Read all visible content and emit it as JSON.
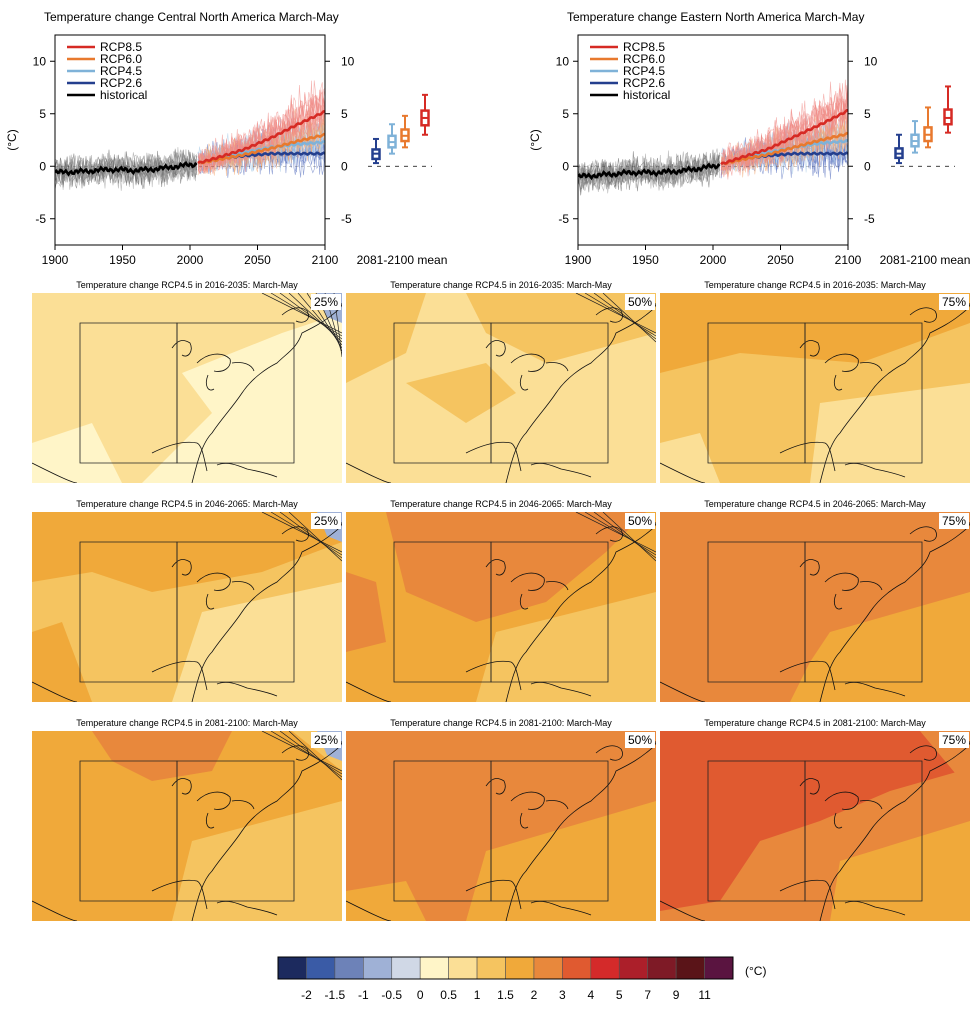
{
  "timeseries": [
    {
      "title": "Temperature change Central North America March-May"
    },
    {
      "title": "Temperature change Eastern North America March-May"
    }
  ],
  "ts_common": {
    "ylabel": "(°C)",
    "mean_label": "2081-2100 mean",
    "yticks": [
      "10",
      "5",
      "0",
      "-5"
    ],
    "xticks": [
      "1900",
      "1950",
      "2000",
      "2050",
      "2100"
    ]
  },
  "maps": {
    "percentile_labels": [
      "25%",
      "50%",
      "75%"
    ],
    "titles": [
      [
        "Temperature change RCP4.5 in 2016-2035: March-May",
        "Temperature change RCP4.5 in 2016-2035: March-May",
        "Temperature change RCP4.5 in 2016-2035: March-May"
      ],
      [
        "Temperature change RCP4.5 in 2046-2065: March-May",
        "Temperature change RCP4.5 in 2046-2065: March-May",
        "Temperature change RCP4.5 in 2046-2065: March-May"
      ],
      [
        "Temperature change RCP4.5 in 2081-2100: March-May",
        "Temperature change RCP4.5 in 2081-2100: March-May",
        "Temperature change RCP4.5 in 2081-2100: March-May"
      ]
    ]
  },
  "colorbar": {
    "unit": "(°C)",
    "labels": [
      "-2",
      "-1.5",
      "-1",
      "-0.5",
      "0",
      "0.5",
      "1",
      "1.5",
      "2",
      "3",
      "4",
      "5",
      "7",
      "9",
      "11"
    ],
    "colors": [
      "#1c2a5e",
      "#3a5ba6",
      "#6d82b8",
      "#9fb1d6",
      "#d0d8e6",
      "#fff5c8",
      "#fbdf96",
      "#f5c460",
      "#f0a93a",
      "#e8883c",
      "#e05a30",
      "#d42a2a",
      "#ac1f2a",
      "#7e1a26",
      "#5a1418",
      "#5a1440"
    ]
  },
  "chart_data": [
    {
      "type": "line",
      "title": "Temperature change Central North America March-May",
      "ylabel": "(°C)",
      "xlim": [
        1900,
        2100
      ],
      "ylim": [
        -7.5,
        12.5
      ],
      "series": [
        {
          "name": "historical",
          "color": "#000000",
          "x": [
            1900,
            1920,
            1940,
            1960,
            1980,
            1990,
            2005
          ],
          "y": [
            -0.6,
            -0.5,
            -0.3,
            -0.4,
            -0.2,
            0.0,
            0.2
          ]
        },
        {
          "name": "RCP8.5",
          "color": "#d62a24",
          "x": [
            2006,
            2020,
            2040,
            2060,
            2080,
            2100
          ],
          "y": [
            0.3,
            0.8,
            1.6,
            2.7,
            4.0,
            5.2
          ]
        },
        {
          "name": "RCP6.0",
          "color": "#e8792e",
          "x": [
            2006,
            2020,
            2040,
            2060,
            2080,
            2100
          ],
          "y": [
            0.3,
            0.6,
            1.1,
            1.7,
            2.4,
            3.0
          ]
        },
        {
          "name": "RCP4.5",
          "color": "#7fb2d8",
          "x": [
            2006,
            2020,
            2040,
            2060,
            2080,
            2100
          ],
          "y": [
            0.3,
            0.7,
            1.3,
            1.8,
            2.1,
            2.3
          ]
        },
        {
          "name": "RCP2.6",
          "color": "#243f8e",
          "x": [
            2006,
            2020,
            2040,
            2060,
            2080,
            2100
          ],
          "y": [
            0.3,
            0.7,
            1.0,
            1.2,
            1.2,
            1.2
          ]
        }
      ],
      "boxes_2081_2100": [
        {
          "name": "RCP2.6",
          "color": "#243f8e",
          "min": 0.3,
          "q1": 0.7,
          "median": 1.2,
          "q3": 1.6,
          "max": 2.6
        },
        {
          "name": "RCP4.5",
          "color": "#7fb2d8",
          "min": 1.2,
          "q1": 1.8,
          "median": 2.3,
          "q3": 2.9,
          "max": 4.0
        },
        {
          "name": "RCP6.0",
          "color": "#e8792e",
          "min": 1.8,
          "q1": 2.4,
          "median": 2.9,
          "q3": 3.5,
          "max": 4.8
        },
        {
          "name": "RCP8.5",
          "color": "#d62a24",
          "min": 3.0,
          "q1": 3.9,
          "median": 4.6,
          "q3": 5.3,
          "max": 6.8
        }
      ]
    },
    {
      "type": "line",
      "title": "Temperature change Eastern North America March-May",
      "ylabel": "(°C)",
      "xlim": [
        1900,
        2100
      ],
      "ylim": [
        -7.5,
        12.5
      ],
      "series": [
        {
          "name": "historical",
          "color": "#000000",
          "x": [
            1900,
            1920,
            1940,
            1960,
            1980,
            1990,
            2005
          ],
          "y": [
            -1.0,
            -0.8,
            -0.6,
            -0.6,
            -0.4,
            -0.2,
            0.1
          ]
        },
        {
          "name": "RCP8.5",
          "color": "#d62a24",
          "x": [
            2006,
            2020,
            2040,
            2060,
            2080,
            2100
          ],
          "y": [
            0.2,
            0.8,
            1.6,
            2.8,
            4.0,
            5.3
          ]
        },
        {
          "name": "RCP6.0",
          "color": "#e8792e",
          "x": [
            2006,
            2020,
            2040,
            2060,
            2080,
            2100
          ],
          "y": [
            0.2,
            0.6,
            1.1,
            1.8,
            2.5,
            3.1
          ]
        },
        {
          "name": "RCP4.5",
          "color": "#7fb2d8",
          "x": [
            2006,
            2020,
            2040,
            2060,
            2080,
            2100
          ],
          "y": [
            0.2,
            0.7,
            1.3,
            1.8,
            2.2,
            2.4
          ]
        },
        {
          "name": "RCP2.6",
          "color": "#243f8e",
          "x": [
            2006,
            2020,
            2040,
            2060,
            2080,
            2100
          ],
          "y": [
            0.2,
            0.7,
            1.0,
            1.2,
            1.2,
            1.2
          ]
        }
      ],
      "boxes_2081_2100": [
        {
          "name": "RCP2.6",
          "color": "#243f8e",
          "min": 0.3,
          "q1": 0.8,
          "median": 1.2,
          "q3": 1.7,
          "max": 3.0
        },
        {
          "name": "RCP4.5",
          "color": "#7fb2d8",
          "min": 1.3,
          "q1": 1.9,
          "median": 2.4,
          "q3": 3.0,
          "max": 4.3
        },
        {
          "name": "RCP6.0",
          "color": "#e8792e",
          "min": 1.8,
          "q1": 2.4,
          "median": 3.0,
          "q3": 3.7,
          "max": 5.6
        },
        {
          "name": "RCP8.5",
          "color": "#d62a24",
          "min": 3.2,
          "q1": 4.0,
          "median": 4.6,
          "q3": 5.4,
          "max": 7.6
        }
      ]
    }
  ]
}
